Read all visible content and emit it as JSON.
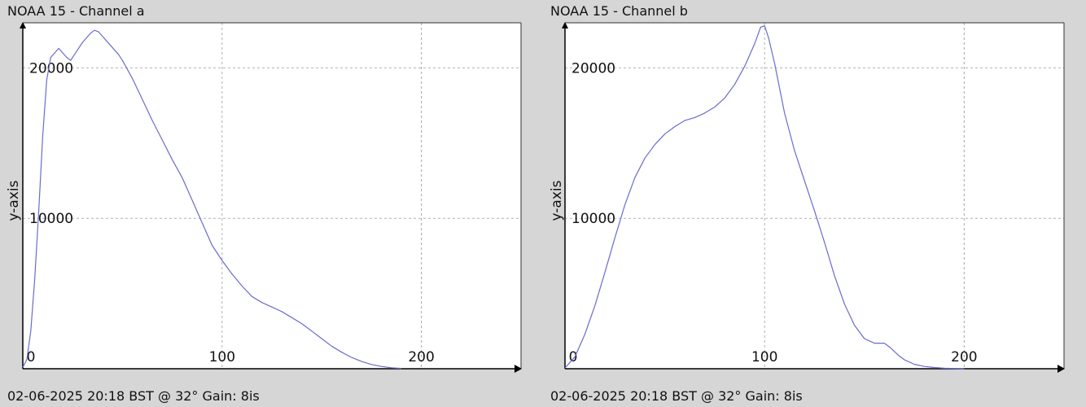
{
  "chart_data": [
    {
      "type": "line",
      "title": "NOAA 15 - Channel a",
      "footer": "02-06-2025 20:18 BST @ 32° Gain: 8is",
      "ylabel": "y-axis",
      "xlim": [
        0,
        250
      ],
      "ylim": [
        0,
        23000
      ],
      "xticks": [
        0,
        100,
        200
      ],
      "yticks": [
        10000,
        20000
      ],
      "grid": true,
      "line_color": "#6b6bd0",
      "series": [
        {
          "x": [
            0,
            2,
            4,
            6,
            8,
            10,
            12,
            14,
            16,
            18,
            20,
            22,
            24,
            26,
            28,
            30,
            32,
            34,
            36,
            38,
            40,
            42,
            44,
            46,
            48,
            50,
            55,
            60,
            65,
            70,
            75,
            80,
            85,
            90,
            95,
            100,
            105,
            110,
            115,
            120,
            125,
            130,
            135,
            140,
            145,
            150,
            155,
            160,
            165,
            170,
            175,
            180,
            185,
            190
          ],
          "y": [
            100,
            600,
            2500,
            6000,
            10500,
            15500,
            19200,
            20700,
            21000,
            21300,
            21000,
            20700,
            20500,
            20900,
            21300,
            21700,
            22000,
            22300,
            22500,
            22400,
            22100,
            21800,
            21500,
            21200,
            20900,
            20500,
            19300,
            17900,
            16500,
            15200,
            13900,
            12700,
            11200,
            9700,
            8200,
            7200,
            6300,
            5500,
            4800,
            4400,
            4100,
            3800,
            3400,
            3000,
            2500,
            2000,
            1500,
            1100,
            750,
            480,
            280,
            150,
            60,
            20
          ]
        }
      ]
    },
    {
      "type": "line",
      "title": "NOAA 15 - Channel b",
      "footer": "02-06-2025 20:18 BST @ 32° Gain: 8is",
      "ylabel": "y-axis",
      "xlim": [
        0,
        250
      ],
      "ylim": [
        0,
        23000
      ],
      "xticks": [
        0,
        100,
        200
      ],
      "yticks": [
        10000,
        20000
      ],
      "grid": true,
      "line_color": "#6b6bd0",
      "series": [
        {
          "x": [
            0,
            5,
            10,
            15,
            20,
            25,
            30,
            35,
            40,
            45,
            50,
            55,
            60,
            65,
            70,
            75,
            80,
            85,
            90,
            95,
            98,
            100,
            102,
            105,
            110,
            115,
            120,
            125,
            130,
            135,
            140,
            145,
            150,
            155,
            160,
            163,
            167,
            170,
            175,
            180,
            185,
            190,
            195,
            200
          ],
          "y": [
            50,
            800,
            2300,
            4200,
            6400,
            8700,
            10900,
            12700,
            14000,
            14900,
            15600,
            16100,
            16500,
            16700,
            17000,
            17400,
            18000,
            18900,
            20100,
            21600,
            22700,
            22800,
            22000,
            20300,
            17000,
            14500,
            12500,
            10500,
            8400,
            6200,
            4300,
            2900,
            2000,
            1700,
            1700,
            1400,
            900,
            600,
            300,
            150,
            80,
            30,
            15,
            5
          ]
        }
      ]
    }
  ]
}
